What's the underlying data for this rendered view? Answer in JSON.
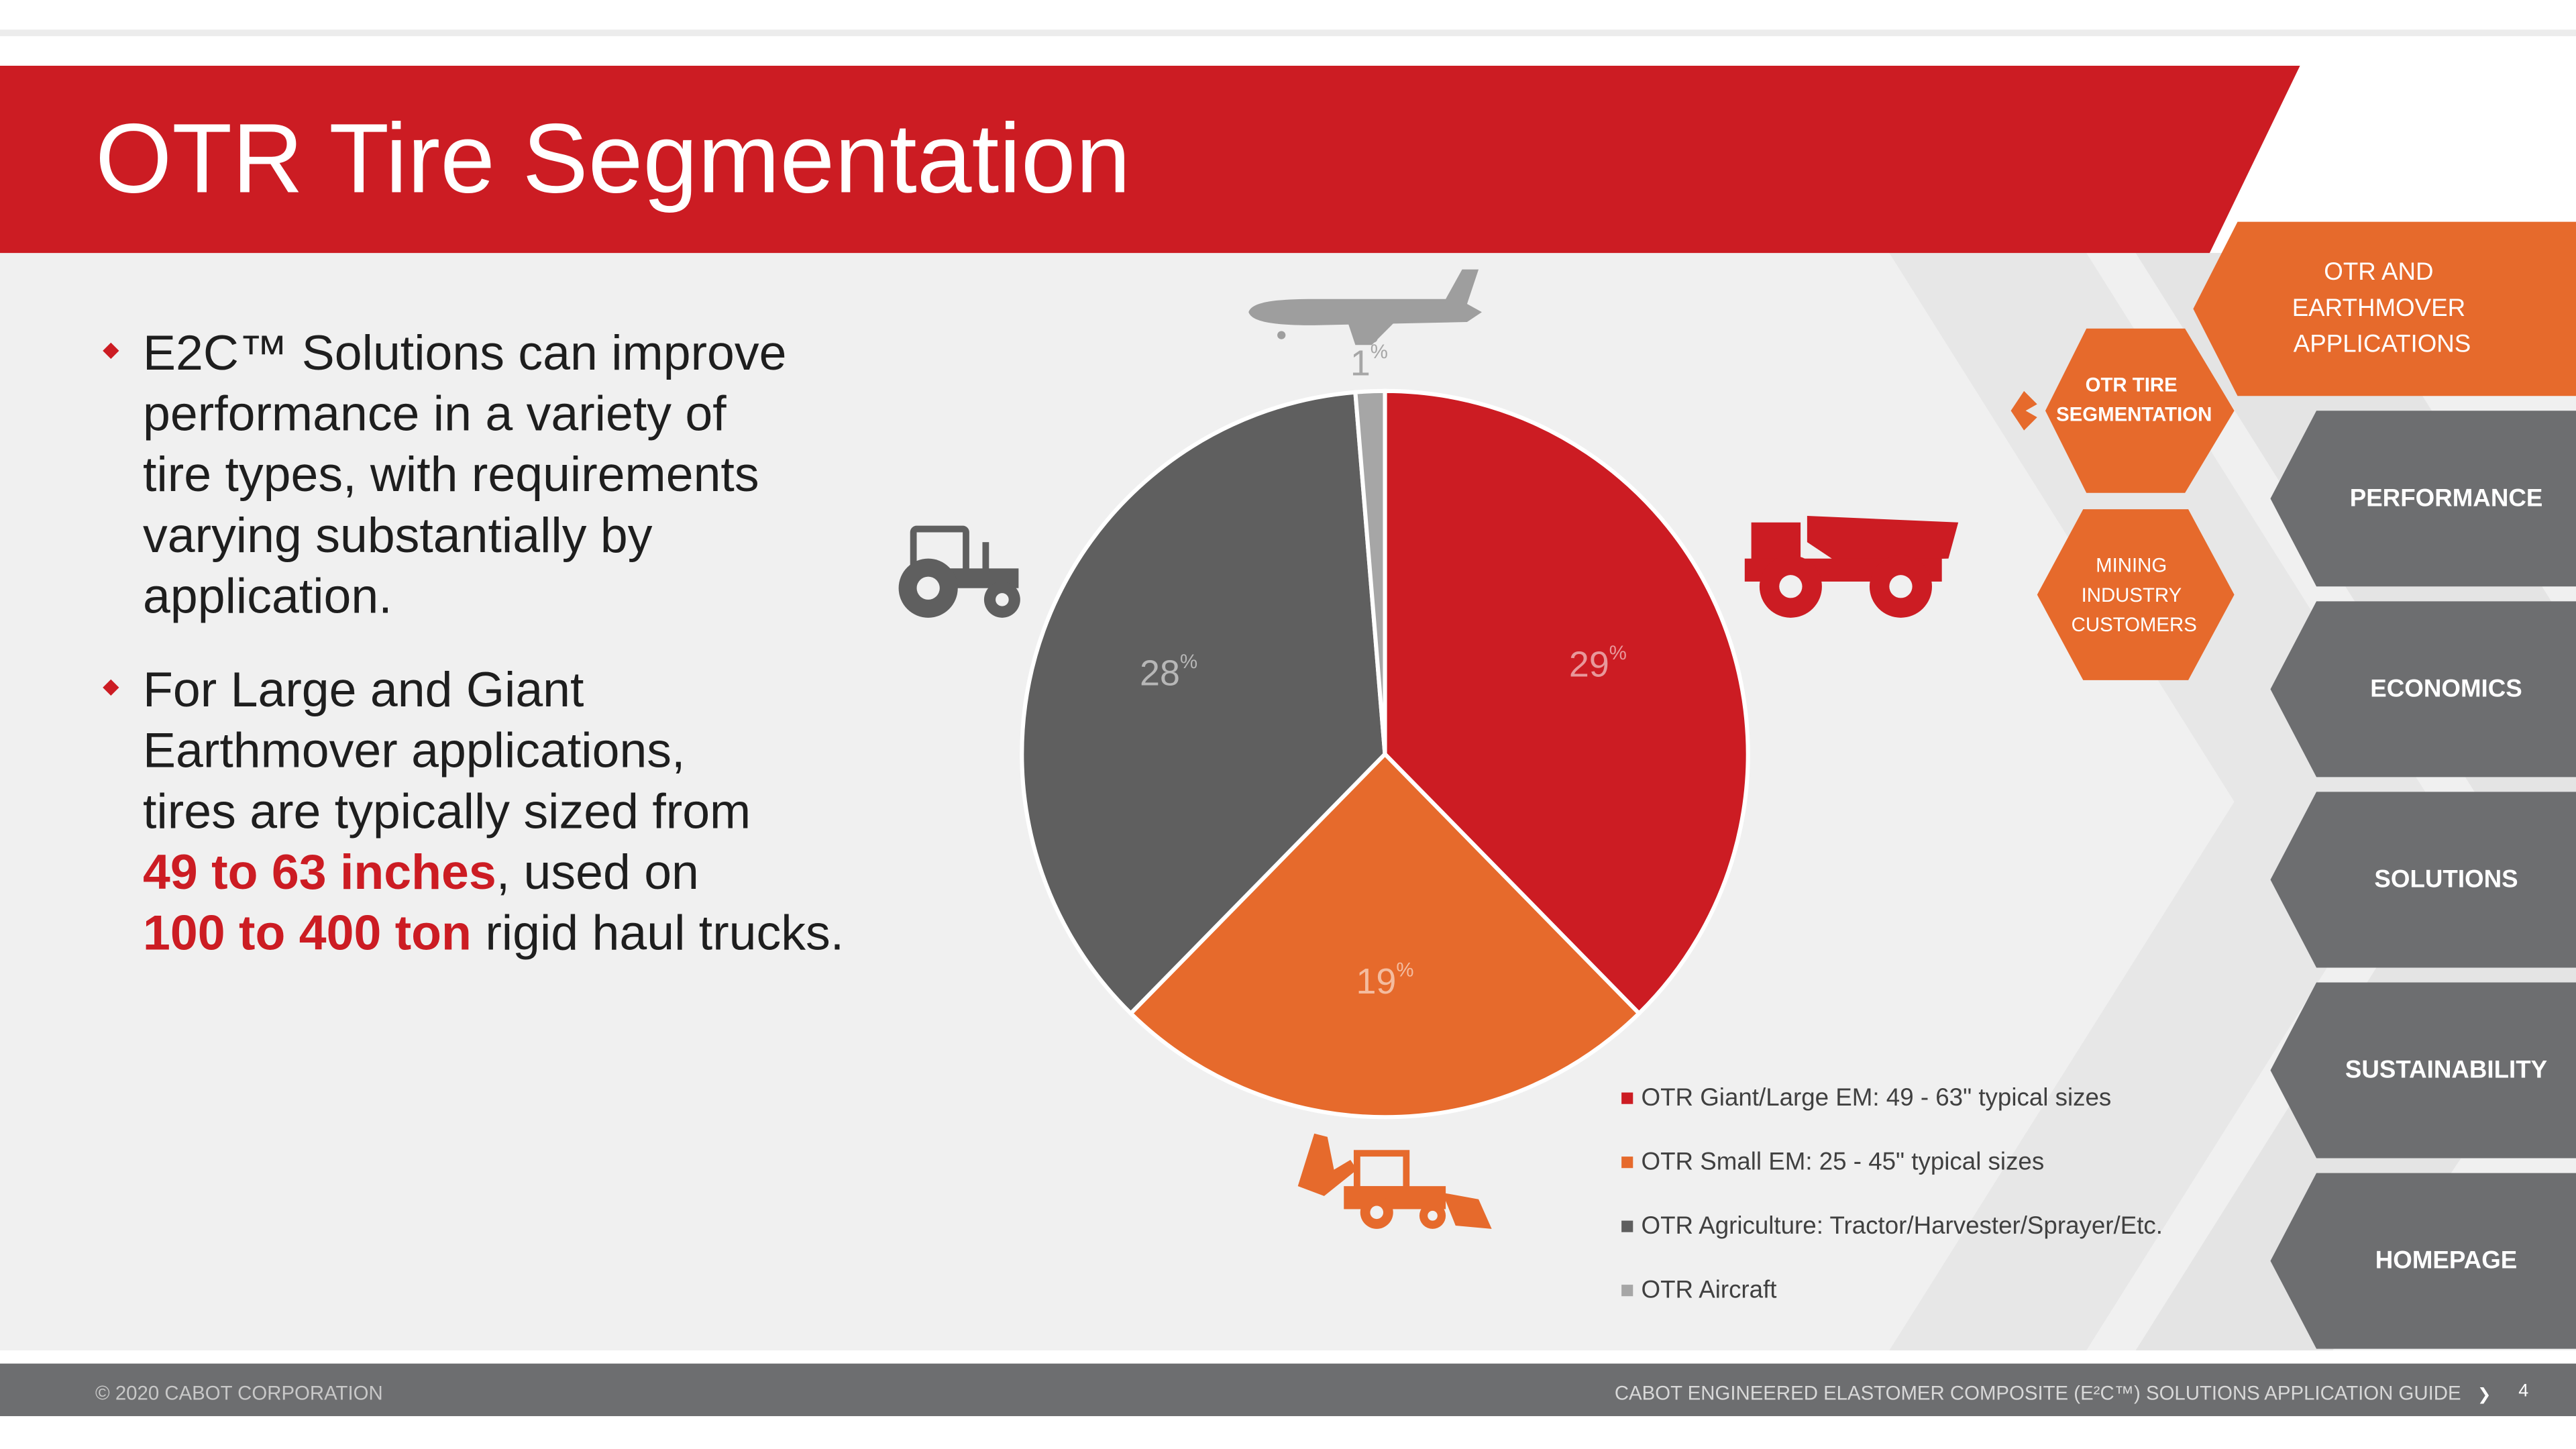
{
  "header": {
    "title": "OTR Tire Segmentation"
  },
  "bullets": [
    [
      [
        {
          "text": "E2C™ Solutions can improve"
        }
      ],
      [
        {
          "text": "performance in a variety of"
        }
      ],
      [
        {
          "text": "tire types, with requirements"
        }
      ],
      [
        {
          "text": "varying substantially by"
        }
      ],
      [
        {
          "text": "application."
        }
      ]
    ],
    [
      [
        {
          "text": "For Large and Giant"
        }
      ],
      [
        {
          "text": "Earthmover applications,"
        }
      ],
      [
        {
          "text": "tires are typically sized from"
        }
      ],
      [
        {
          "text": "49 to 63 inches",
          "em": true
        },
        {
          "text": ", used on"
        }
      ],
      [
        {
          "text": "100 to 400 ton",
          "em": true
        },
        {
          "text": " rigid haul trucks."
        }
      ]
    ]
  ],
  "chart_data": {
    "type": "pie",
    "unit": "%",
    "categories": [
      "OTR Giant/Large EM: 49 - 63\" typical sizes",
      "OTR Small EM: 25 - 45\" typical sizes",
      "OTR Agriculture: Tractor/Harvester/Sprayer/Etc.",
      "OTR Aircraft"
    ],
    "values": [
      29,
      19,
      28,
      1
    ],
    "colors": [
      "#cc1c23",
      "#e66a2c",
      "#5f5f5f",
      "#a6a6a6"
    ],
    "legend": "bottom-right"
  },
  "nav": {
    "parent": "OTR AND EARTHMOVER APPLICATIONS",
    "current": "OTR TIRE SEGMENTATION",
    "sibling": "MINING INDUSTRY CUSTOMERS",
    "items": [
      "PERFORMANCE",
      "ECONOMICS",
      "SOLUTIONS",
      "SUSTAINABILITY",
      "HOMEPAGE"
    ]
  },
  "footer": {
    "copyright": "© 2020 CABOT CORPORATION",
    "guide": "CABOT ENGINEERED ELASTOMER COMPOSITE (E²C™) SOLUTIONS APPLICATION GUIDE",
    "arrow": "❯",
    "page": "4"
  }
}
